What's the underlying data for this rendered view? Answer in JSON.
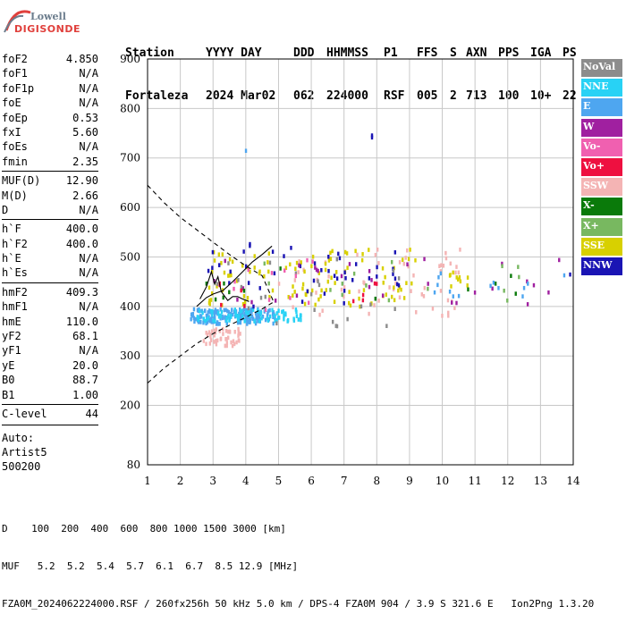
{
  "logo": {
    "line1": "Lowell",
    "line2": "DIGISONDE"
  },
  "header": {
    "columns": [
      {
        "label": "Station",
        "value": "Fortaleza"
      },
      {
        "label": "YYYY DAY",
        "value": "2024 Mar02"
      },
      {
        "label": "DDD",
        "value": "062"
      },
      {
        "label": "HHMMSS",
        "value": "224000"
      },
      {
        "label": "P1",
        "value": "RSF"
      },
      {
        "label": "FFS",
        "value": "005"
      },
      {
        "label": "S",
        "value": "2"
      },
      {
        "label": "AXN",
        "value": "713"
      },
      {
        "label": "PPS",
        "value": "100"
      },
      {
        "label": "IGA",
        "value": "10+"
      },
      {
        "label": "PS",
        "value": "22"
      }
    ]
  },
  "params": {
    "groups": [
      [
        {
          "name": "foF2",
          "value": "4.850"
        },
        {
          "name": "foF1",
          "value": "N/A"
        },
        {
          "name": "foF1p",
          "value": "N/A"
        },
        {
          "name": "foE",
          "value": "N/A"
        },
        {
          "name": "foEp",
          "value": "0.53"
        },
        {
          "name": "fxI",
          "value": "5.60"
        },
        {
          "name": "foEs",
          "value": "N/A"
        },
        {
          "name": "fmin",
          "value": "2.35"
        }
      ],
      [
        {
          "name": "MUF(D)",
          "value": "12.90"
        },
        {
          "name": "M(D)",
          "value": "2.66"
        },
        {
          "name": "D",
          "value": "N/A"
        }
      ],
      [
        {
          "name": "h`F",
          "value": "400.0"
        },
        {
          "name": "h`F2",
          "value": "400.0"
        },
        {
          "name": "h`E",
          "value": "N/A"
        },
        {
          "name": "h`Es",
          "value": "N/A"
        }
      ],
      [
        {
          "name": "hmF2",
          "value": "409.3"
        },
        {
          "name": "hmF1",
          "value": "N/A"
        },
        {
          "name": "hmE",
          "value": "110.0"
        },
        {
          "name": "yF2",
          "value": "68.1"
        },
        {
          "name": "yF1",
          "value": "N/A"
        },
        {
          "name": "yE",
          "value": "20.0"
        },
        {
          "name": "B0",
          "value": "88.7"
        },
        {
          "name": "B1",
          "value": "1.00"
        }
      ],
      [
        {
          "name": "C-level",
          "value": "44"
        }
      ]
    ],
    "auto": [
      "Auto:",
      "Artist5",
      "500200"
    ]
  },
  "legend": [
    {
      "label": "NoVal",
      "color": "#8c8c8c"
    },
    {
      "label": "NNE",
      "color": "#28d2f5"
    },
    {
      "label": "E",
      "color": "#4ea6f0"
    },
    {
      "label": "W",
      "color": "#a020a0"
    },
    {
      "label": "Vo-",
      "color": "#f060b0"
    },
    {
      "label": "Vo+",
      "color": "#ee1040"
    },
    {
      "label": "SSW",
      "color": "#f4b4b4"
    },
    {
      "label": "X-",
      "color": "#0a7a0a"
    },
    {
      "label": "X+",
      "color": "#78b860"
    },
    {
      "label": "SSE",
      "color": "#d8d000"
    },
    {
      "label": "NNW",
      "color": "#1a14b4"
    }
  ],
  "footer": {
    "line1": "D    100  200  400  600  800 1000 1500 3000 [km]",
    "line2": "MUF   5.2  5.2  5.4  5.7  6.1  6.7  8.5 12.9 [MHz]",
    "line3": "FZA0M_2024062224000.RSF / 260fx256h 50 kHz 5.0 km / DPS-4 FZA0M 904 / 3.9 S 321.6 E   Ion2Png 1.3.20"
  },
  "chart_data": {
    "type": "scatter",
    "xlabel": "",
    "ylabel": "",
    "xlim": [
      1,
      14
    ],
    "ylim": [
      80,
      900
    ],
    "xticks": [
      1,
      2,
      3,
      4,
      5,
      6,
      7,
      8,
      9,
      10,
      11,
      12,
      13,
      14
    ],
    "yticks": [
      80,
      200,
      300,
      400,
      500,
      600,
      700,
      800,
      900
    ],
    "grid": true,
    "echo_groups": [
      {
        "series": "E",
        "fmin": 2.3,
        "fmax": 4.9,
        "hmin": 365,
        "hmax": 395,
        "count": 170
      },
      {
        "series": "NNE",
        "fmin": 2.5,
        "fmax": 5.8,
        "hmin": 370,
        "hmax": 395,
        "count": 80
      },
      {
        "series": "SSW",
        "fmin": 2.7,
        "fmax": 3.9,
        "hmin": 320,
        "hmax": 355,
        "count": 45
      },
      {
        "series": "SSW",
        "fmin": 5.0,
        "fmax": 10.6,
        "hmin": 380,
        "hmax": 520,
        "count": 60
      },
      {
        "series": "SSE",
        "fmin": 2.8,
        "fmax": 9.2,
        "hmin": 400,
        "hmax": 520,
        "count": 110
      },
      {
        "series": "SSE",
        "fmin": 10.2,
        "fmax": 10.8,
        "hmin": 440,
        "hmax": 470,
        "count": 10
      },
      {
        "series": "NNW",
        "fmin": 2.8,
        "fmax": 9.1,
        "hmin": 400,
        "hmax": 530,
        "count": 45
      },
      {
        "series": "W",
        "fmin": 3.0,
        "fmax": 13.9,
        "hmin": 400,
        "hmax": 500,
        "count": 30
      },
      {
        "series": "X+",
        "fmin": 3.0,
        "fmax": 12.7,
        "hmin": 405,
        "hmax": 500,
        "count": 15
      },
      {
        "series": "X-",
        "fmin": 2.5,
        "fmax": 12.6,
        "hmin": 410,
        "hmax": 480,
        "count": 12
      },
      {
        "series": "NoVal",
        "fmin": 3.0,
        "fmax": 9.0,
        "hmin": 360,
        "hmax": 500,
        "count": 25
      },
      {
        "series": "Vo-",
        "fmin": 3.0,
        "fmax": 6.5,
        "hmin": 390,
        "hmax": 500,
        "count": 12
      },
      {
        "series": "Vo+",
        "fmin": 3.0,
        "fmax": 8.5,
        "hmin": 400,
        "hmax": 460,
        "count": 10
      },
      {
        "series": "E",
        "fmin": 9.7,
        "fmax": 14.0,
        "hmin": 420,
        "hmax": 470,
        "count": 14
      }
    ],
    "isolated_points": [
      {
        "series": "E",
        "f": 4.0,
        "h": 715
      },
      {
        "series": "NNW",
        "f": 7.85,
        "h": 742
      },
      {
        "series": "NNW",
        "f": 7.85,
        "h": 746
      },
      {
        "series": "NNW",
        "f": 13.9,
        "h": 465
      }
    ],
    "profile_upper": [
      [
        1.0,
        645
      ],
      [
        1.5,
        610
      ],
      [
        2.0,
        580
      ],
      [
        2.5,
        555
      ],
      [
        3.0,
        530
      ],
      [
        3.5,
        505
      ],
      [
        4.0,
        482
      ],
      [
        4.5,
        462
      ],
      [
        4.85,
        409
      ]
    ],
    "profile_lower": [
      [
        1.0,
        245
      ],
      [
        1.5,
        275
      ],
      [
        2.0,
        300
      ],
      [
        2.5,
        325
      ],
      [
        3.0,
        345
      ],
      [
        3.5,
        362
      ],
      [
        4.0,
        378
      ],
      [
        4.5,
        395
      ],
      [
        4.85,
        409
      ]
    ],
    "trace_o": [
      [
        2.5,
        400
      ],
      [
        2.8,
        418
      ],
      [
        3.0,
        425
      ],
      [
        3.3,
        432
      ],
      [
        3.6,
        450
      ],
      [
        3.9,
        470
      ],
      [
        4.2,
        490
      ],
      [
        4.5,
        505
      ],
      [
        4.8,
        522
      ]
    ],
    "trace_e": [
      [
        2.6,
        415
      ],
      [
        2.8,
        440
      ],
      [
        2.95,
        470
      ],
      [
        3.05,
        445
      ],
      [
        3.15,
        460
      ],
      [
        3.25,
        430
      ],
      [
        3.45,
        412
      ],
      [
        3.6,
        420
      ],
      [
        3.75,
        420
      ],
      [
        3.9,
        415
      ],
      [
        4.1,
        410
      ]
    ]
  }
}
